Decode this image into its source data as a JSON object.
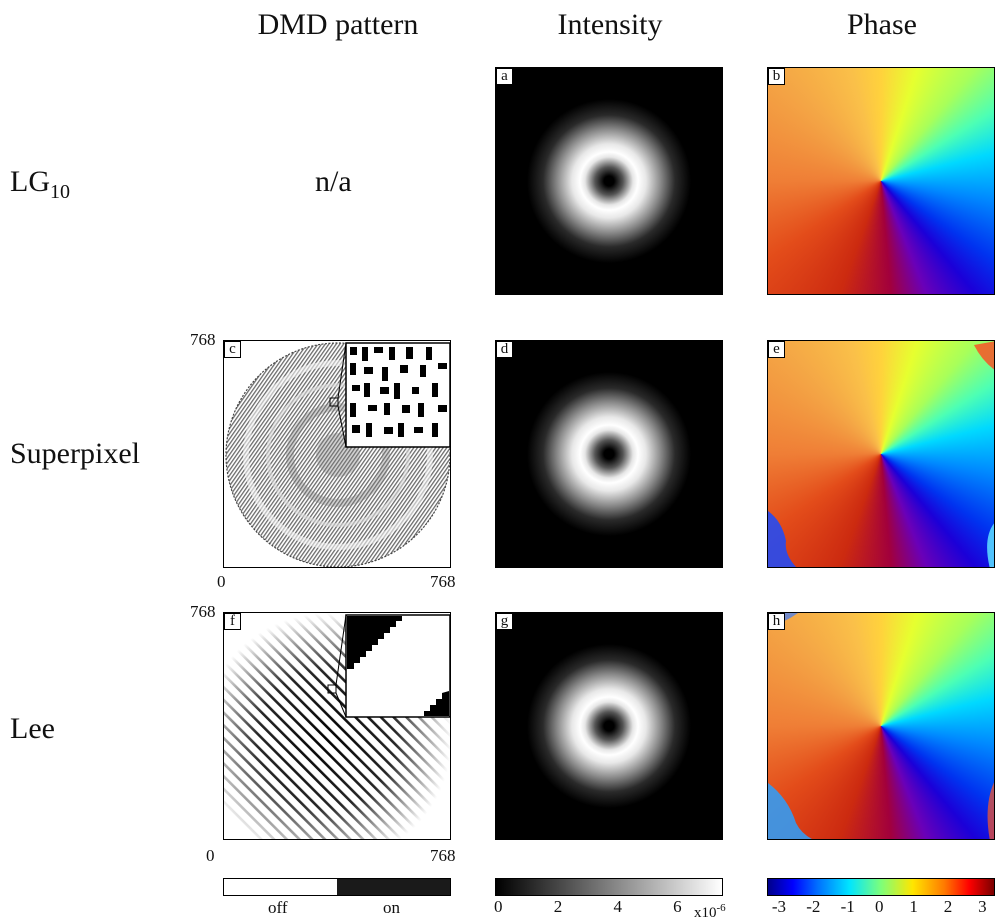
{
  "columns": {
    "dmd": "DMD pattern",
    "intensity": "Intensity",
    "phase": "Phase"
  },
  "rows": {
    "lg": {
      "main": "LG",
      "sub": "10"
    },
    "superpixel": "Superpixel",
    "lee": "Lee"
  },
  "na_text": "n/a",
  "panels": {
    "a": "a",
    "b": "b",
    "c": "c",
    "d": "d",
    "e": "e",
    "f": "f",
    "g": "g",
    "h": "h"
  },
  "axes": {
    "c": {
      "ymax": "768",
      "xmin": "0",
      "xmax": "768"
    },
    "f": {
      "ymax": "768",
      "xmin": "0",
      "xmax": "768"
    }
  },
  "colorbars": {
    "dmd": {
      "labels": [
        "off",
        "on"
      ],
      "colors": [
        "#ffffff",
        "#1a1a1a"
      ]
    },
    "intensity": {
      "ticks": [
        "0",
        "2",
        "4",
        "6"
      ],
      "multiplier": "x10",
      "exponent": "-6"
    },
    "phase": {
      "ticks": [
        "-3",
        "-2",
        "-1",
        "0",
        "1",
        "2",
        "3"
      ],
      "colormap": "jet"
    }
  }
}
